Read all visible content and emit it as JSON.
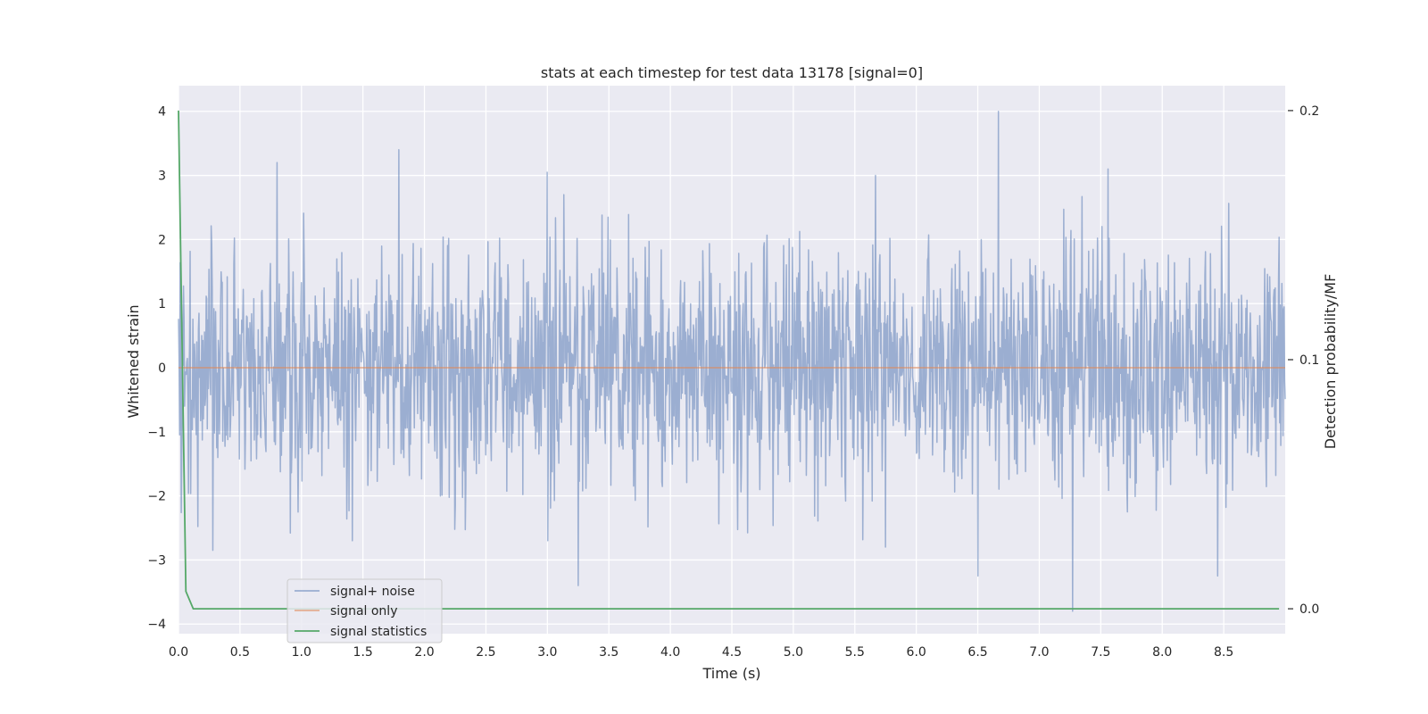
{
  "chart_data": {
    "type": "line",
    "title": "stats at each timestep for test data 13178 [signal=0]",
    "xlabel": "Time (s)",
    "ylabel": "Whitened strain",
    "y2label": "Detection probability/MF",
    "xlim": [
      0.0,
      9.0
    ],
    "ylim": [
      -4.15,
      4.4
    ],
    "y2lim": [
      -0.01,
      0.21
    ],
    "x_ticks": [
      "0.0",
      "0.5",
      "1.0",
      "1.5",
      "2.0",
      "2.5",
      "3.0",
      "3.5",
      "4.0",
      "4.5",
      "5.0",
      "5.5",
      "6.0",
      "6.5",
      "7.0",
      "7.5",
      "8.0",
      "8.5"
    ],
    "y_ticks": [
      "4",
      "3",
      "2",
      "1",
      "0",
      "−1",
      "−2",
      "−3",
      "−4"
    ],
    "y2_ticks": [
      "0.2",
      "0.1",
      "0.0"
    ],
    "grid": true,
    "legend_position": "lower-left",
    "series": [
      {
        "name": "signal+ noise",
        "axis": "left",
        "color": "#4c72b0",
        "x_range": [
          0.0,
          9.0
        ],
        "sample_count": 2000,
        "distribution": "noise",
        "std": 0.95,
        "peaks": [
          {
            "x": 0.8,
            "y": 3.2
          },
          {
            "x": 1.79,
            "y": 3.4
          },
          {
            "x": 3.0,
            "y": 3.05
          },
          {
            "x": 5.67,
            "y": 3.0
          },
          {
            "x": 6.67,
            "y": 4.0
          },
          {
            "x": 7.56,
            "y": 3.1
          },
          {
            "x": 0.28,
            "y": -2.85
          },
          {
            "x": 3.25,
            "y": -3.4
          },
          {
            "x": 6.5,
            "y": -3.25
          },
          {
            "x": 7.27,
            "y": -3.8
          },
          {
            "x": 8.45,
            "y": -3.25
          },
          {
            "x": 5.75,
            "y": -2.8
          }
        ]
      },
      {
        "name": "signal only",
        "axis": "left",
        "color": "#dd8452",
        "x": [
          0.0,
          9.0
        ],
        "y": [
          0.0,
          0.0
        ]
      },
      {
        "name": "signal statistics",
        "axis": "right",
        "color": "#55a868",
        "x": [
          0.0,
          0.06,
          0.12,
          0.5,
          1.0,
          2.0,
          3.0,
          4.0,
          5.0,
          6.0,
          7.0,
          8.0,
          8.95
        ],
        "y": [
          0.2,
          0.007,
          0.0,
          0.0,
          0.0,
          0.0,
          0.0,
          0.0,
          0.0,
          0.0,
          0.0,
          0.0,
          0.0
        ]
      }
    ]
  }
}
